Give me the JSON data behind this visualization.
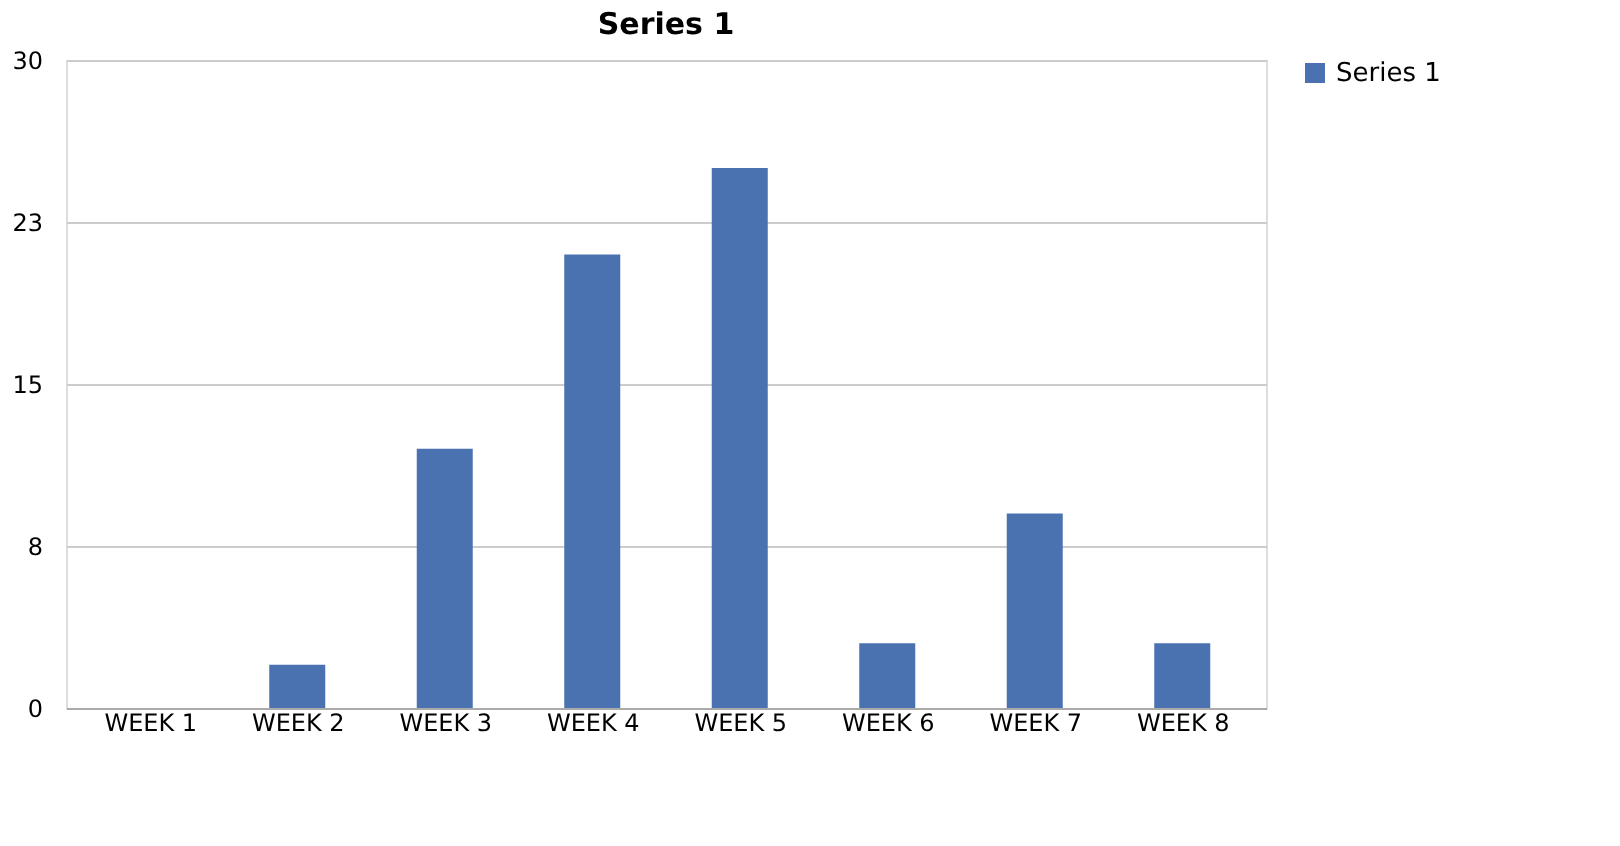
{
  "chart_data": {
    "type": "bar",
    "title": "Series 1",
    "categories": [
      "WEEK 1",
      "WEEK 2",
      "WEEK 3",
      "WEEK 4",
      "WEEK 5",
      "WEEK 6",
      "WEEK 7",
      "WEEK 8"
    ],
    "series": [
      {
        "name": "Series 1",
        "color": "#4a72b0",
        "values": [
          0,
          2,
          12,
          21,
          25,
          3,
          9,
          3
        ]
      }
    ],
    "ylim": [
      0,
      30
    ],
    "yticks": [
      0,
      {
        "value": 7.5,
        "label": "8"
      },
      15,
      {
        "value": 22.5,
        "label": "23"
      },
      30
    ],
    "grid": "y",
    "legend": "right"
  }
}
